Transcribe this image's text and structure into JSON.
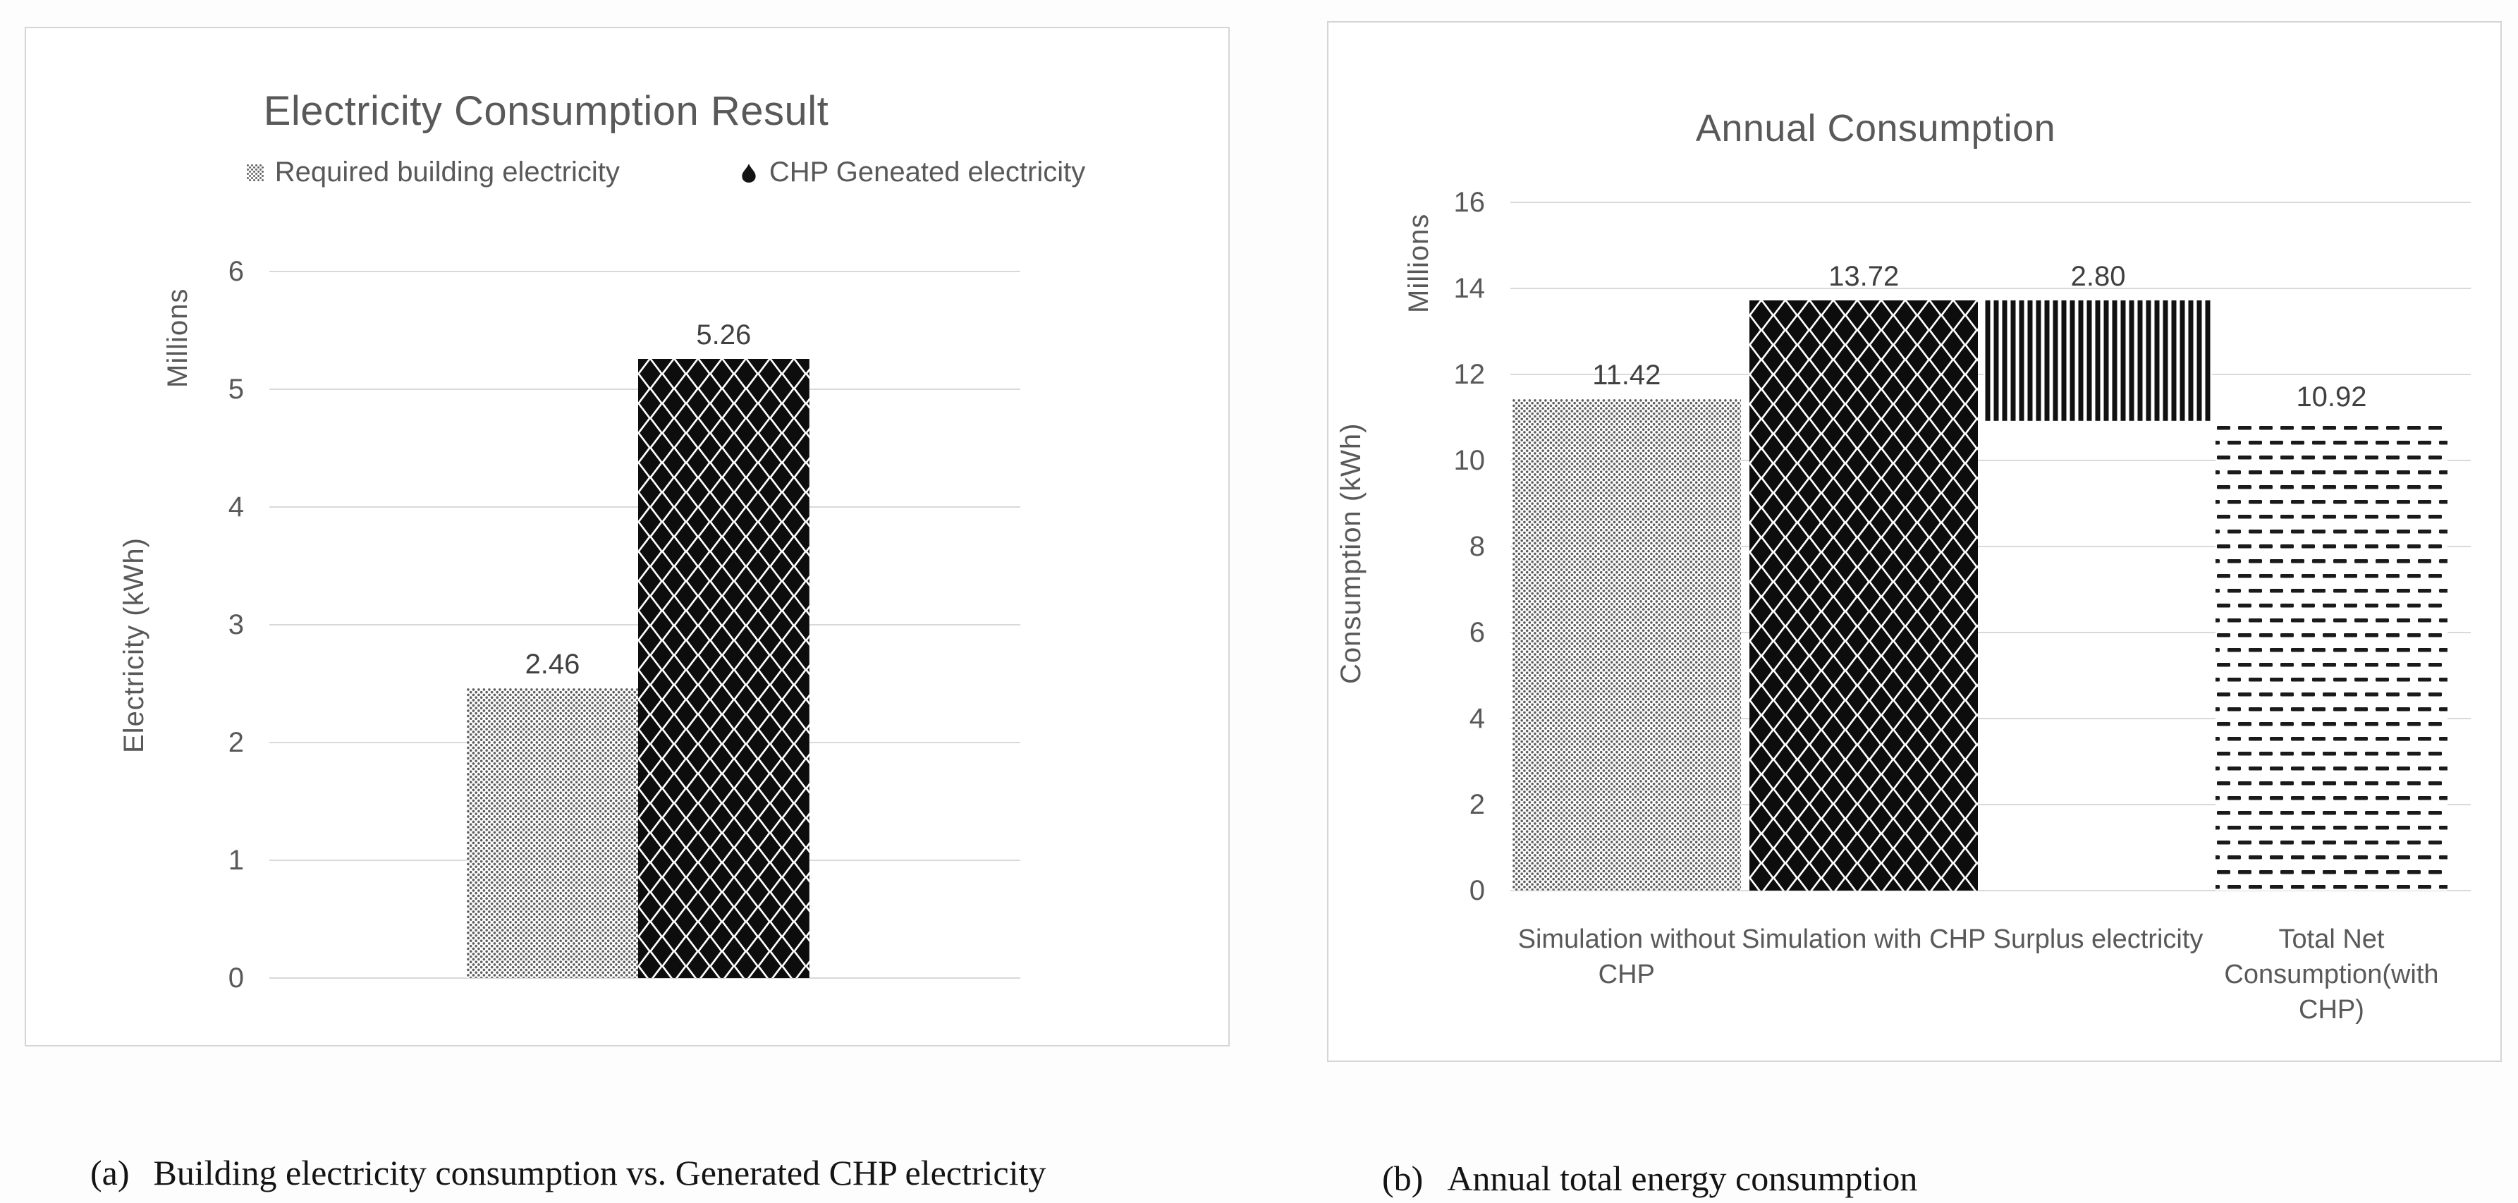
{
  "figure": {
    "captions": [
      {
        "label": "(a)",
        "text": "Building electricity consumption vs. Generated CHP electricity"
      },
      {
        "label": "(b)",
        "text": "Annual total energy consumption"
      }
    ]
  },
  "colors": {
    "text_gray": "#595959",
    "value_label": "#404040",
    "pattern_ink": "#111111",
    "dot_gray": "#5f5f5f",
    "gridline": "#d9d9d9",
    "panel_border": "#d5d5d5"
  },
  "chart_data": [
    {
      "type": "bar",
      "title": "Electricity Consumption Result",
      "units_label": "Millions",
      "ylabel": "Electricity (kWh)",
      "xlabel": "",
      "ylim": [
        0,
        6
      ],
      "yticks": [
        0,
        1,
        2,
        3,
        4,
        5,
        6
      ],
      "grid": true,
      "legend_position": "top",
      "legend": [
        "Required building electricity",
        "CHP Geneated electricity"
      ],
      "series": [
        {
          "name": "Required building electricity",
          "pattern": "dots",
          "value": 2.46,
          "label": "2.46"
        },
        {
          "name": "CHP Geneated electricity",
          "pattern": "diamonds",
          "value": 5.26,
          "label": "5.26"
        }
      ]
    },
    {
      "type": "bar",
      "title": "Annual Consumption",
      "units_label": "Millions",
      "ylabel": "Consumption (kWh)",
      "xlabel": "",
      "ylim": [
        0,
        16
      ],
      "yticks": [
        0,
        2,
        4,
        6,
        8,
        10,
        12,
        14,
        16
      ],
      "grid": true,
      "categories": [
        "Simulation without CHP",
        "Simulation with CHP",
        "Surplus electricity",
        "Total Net Consumption(with CHP)"
      ],
      "bars": [
        {
          "category": "Simulation without CHP",
          "pattern": "dots",
          "base": 0,
          "top": 11.42,
          "label": "11.42"
        },
        {
          "category": "Simulation with CHP",
          "pattern": "diamonds",
          "base": 0,
          "top": 13.72,
          "label": "13.72"
        },
        {
          "category": "Surplus electricity",
          "pattern": "vertical-stripes",
          "base": 10.92,
          "top": 13.72,
          "label": "2.80"
        },
        {
          "category": "Total Net Consumption(with CHP)",
          "pattern": "horizontal-dashes",
          "base": 0,
          "top": 10.92,
          "label": "10.92"
        }
      ]
    }
  ]
}
